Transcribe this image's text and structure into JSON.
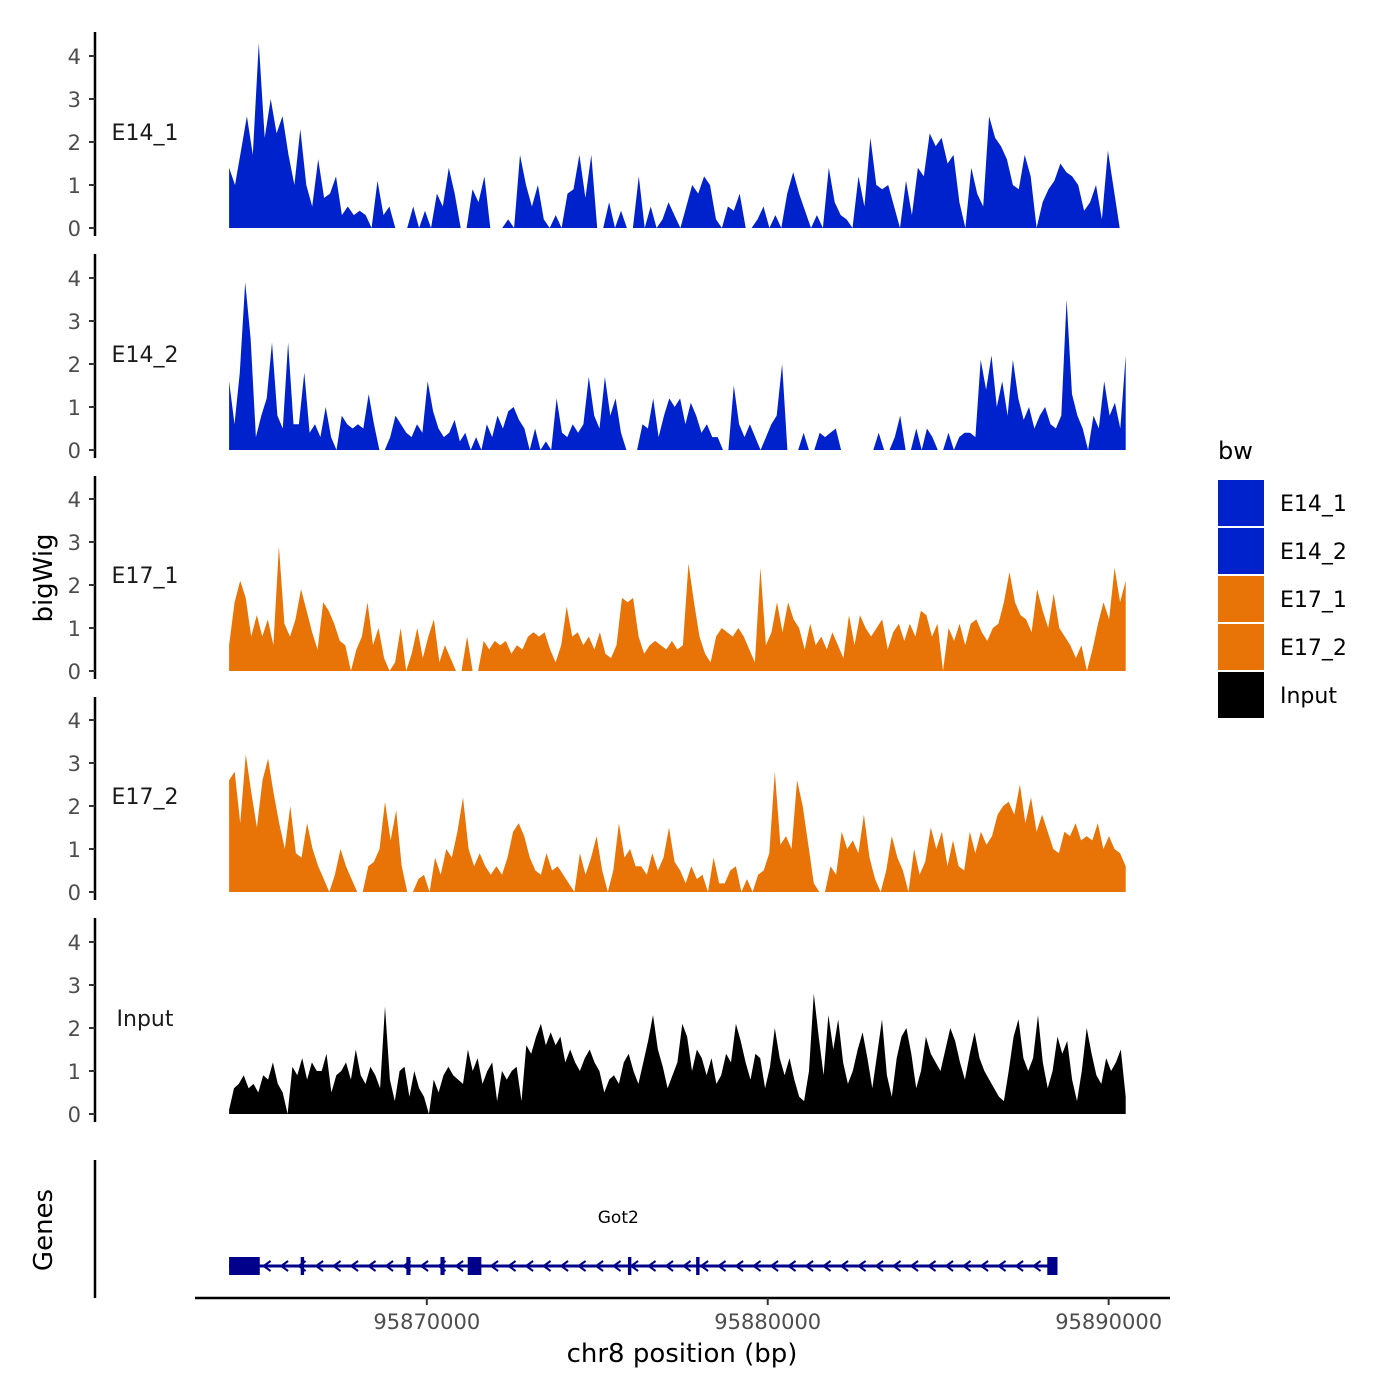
{
  "chart_data": {
    "type": "area",
    "ylabel": "bigWig",
    "xlabel": "chr8 position (bp)",
    "ylim": [
      0,
      4.4
    ],
    "yticks": [
      0,
      1,
      2,
      3,
      4
    ],
    "xlim": [
      95863200,
      95891800
    ],
    "xticks": [
      95870000,
      95880000,
      95890000
    ],
    "xtick_labels": [
      "95870000",
      "95880000",
      "95890000"
    ],
    "x_start": 95864200,
    "x_end": 95890500,
    "legend": {
      "title": "bw",
      "position": "right",
      "entries": [
        {
          "label": "E14_1",
          "color": "#0022CC"
        },
        {
          "label": "E14_2",
          "color": "#0022CC"
        },
        {
          "label": "E17_1",
          "color": "#E87306"
        },
        {
          "label": "E17_2",
          "color": "#E87306"
        },
        {
          "label": "Input",
          "color": "#000000"
        }
      ]
    },
    "series": [
      {
        "name": "E14_1",
        "color": "#0022CC",
        "values": [
          1.4,
          1.0,
          1.8,
          2.6,
          1.7,
          4.3,
          2.1,
          3.0,
          2.2,
          2.6,
          1.7,
          1.0,
          2.3,
          1.0,
          0.5,
          1.6,
          0.7,
          0.8,
          1.2,
          0.3,
          0.5,
          0.3,
          0.4,
          0.3,
          0.0,
          1.1,
          0.3,
          0.5,
          0.0,
          0.0,
          0.0,
          0.5,
          0.0,
          0.4,
          0.0,
          0.8,
          0.5,
          1.4,
          0.8,
          0.0,
          0.0,
          0.9,
          0.6,
          1.2,
          0.0,
          0.0,
          0.0,
          0.2,
          0.0,
          1.7,
          1.0,
          0.5,
          1.0,
          0.2,
          0.0,
          0.3,
          0.0,
          0.8,
          0.9,
          1.7,
          0.7,
          1.7,
          0.0,
          0.0,
          0.6,
          0.0,
          0.4,
          0.0,
          0.0,
          1.2,
          0.0,
          0.5,
          0.0,
          0.2,
          0.6,
          0.3,
          0.0,
          0.5,
          1.0,
          0.8,
          1.2,
          1.0,
          0.2,
          0.0,
          0.5,
          0.4,
          0.8,
          0.0,
          0.0,
          0.2,
          0.5,
          0.0,
          0.3,
          0.0,
          0.8,
          1.3,
          0.8,
          0.4,
          0.0,
          0.3,
          0.0,
          1.4,
          0.6,
          0.3,
          0.2,
          0.0,
          1.2,
          0.5,
          2.1,
          1.0,
          0.9,
          1.0,
          0.5,
          0.0,
          1.1,
          0.3,
          1.4,
          1.2,
          2.2,
          1.9,
          2.1,
          1.5,
          1.7,
          0.6,
          0.0,
          1.4,
          0.8,
          0.5,
          2.6,
          2.1,
          1.9,
          1.6,
          1.0,
          0.9,
          1.7,
          1.2,
          0.0,
          0.6,
          0.9,
          1.1,
          1.5,
          1.3,
          1.2,
          1.0,
          0.4,
          0.6,
          1.0,
          0.2,
          1.8,
          0.9,
          0.0,
          0.0
        ],
        "gaps": [
          [
            0,
            0
          ]
        ]
      },
      {
        "name": "E14_2",
        "color": "#0022CC",
        "values": [
          1.6,
          0.6,
          1.8,
          3.9,
          2.6,
          0.3,
          0.8,
          1.2,
          2.5,
          0.8,
          0.5,
          2.5,
          0.6,
          0.6,
          1.8,
          0.4,
          0.6,
          0.3,
          1.0,
          0.3,
          0.0,
          0.8,
          0.6,
          0.5,
          0.6,
          0.5,
          1.3,
          0.6,
          0.0,
          0.0,
          0.3,
          0.8,
          0.6,
          0.4,
          0.3,
          0.6,
          0.4,
          1.6,
          0.9,
          0.5,
          0.3,
          0.4,
          0.7,
          0.2,
          0.4,
          0.0,
          0.3,
          0.0,
          0.6,
          0.3,
          0.8,
          0.5,
          0.9,
          1.0,
          0.7,
          0.5,
          0.0,
          0.5,
          0.0,
          0.2,
          0.0,
          1.2,
          0.4,
          0.3,
          0.6,
          0.4,
          0.6,
          1.7,
          0.8,
          0.5,
          1.7,
          0.8,
          1.2,
          0.4,
          0.0,
          0.0,
          0.0,
          0.6,
          0.5,
          1.2,
          0.3,
          0.8,
          1.2,
          1.0,
          1.2,
          0.6,
          1.1,
          0.8,
          0.4,
          0.6,
          0.3,
          0.3,
          0.0,
          0.0,
          1.5,
          0.6,
          0.3,
          0.6,
          0.3,
          0.0,
          0.3,
          0.6,
          0.8,
          2.0,
          0.0,
          0.0,
          0.0,
          0.4,
          0.0,
          0.0,
          0.4,
          0.3,
          0.4,
          0.5,
          0.0,
          0.0,
          0.0,
          0.0,
          0.0,
          0.0,
          0.0,
          0.4,
          0.0,
          0.0,
          0.3,
          0.8,
          0.0,
          0.0,
          0.5,
          0.0,
          0.5,
          0.3,
          0.0,
          0.0,
          0.4,
          0.0,
          0.3,
          0.4,
          0.4,
          0.3,
          2.1,
          1.4,
          2.2,
          1.0,
          1.6,
          0.8,
          2.1,
          1.2,
          0.7,
          1.0,
          0.5,
          0.8,
          1.0,
          0.6,
          0.5,
          0.8,
          3.5,
          1.3,
          0.8,
          0.5,
          0.0,
          0.8,
          0.5,
          1.6,
          0.8,
          1.1,
          0.5,
          2.2
        ]
      },
      {
        "name": "E17_1",
        "color": "#E87306",
        "values": [
          0.6,
          1.6,
          2.1,
          1.7,
          0.8,
          1.3,
          0.8,
          1.2,
          0.6,
          2.9,
          1.1,
          0.8,
          1.2,
          1.9,
          1.4,
          0.9,
          0.5,
          1.6,
          1.4,
          1.1,
          0.7,
          0.6,
          0.0,
          0.5,
          0.8,
          1.6,
          0.6,
          1.0,
          0.3,
          0.0,
          0.2,
          1.0,
          0.0,
          0.4,
          1.0,
          0.3,
          0.8,
          1.2,
          0.2,
          0.6,
          0.3,
          0.0,
          0.0,
          0.8,
          0.0,
          0.0,
          0.7,
          0.5,
          0.7,
          0.6,
          0.7,
          0.4,
          0.6,
          0.5,
          0.8,
          0.9,
          0.8,
          0.9,
          0.5,
          0.2,
          0.6,
          1.5,
          0.8,
          0.9,
          0.6,
          0.8,
          0.5,
          0.9,
          0.4,
          0.3,
          0.6,
          1.7,
          1.6,
          1.7,
          0.8,
          0.4,
          0.6,
          0.7,
          0.6,
          0.5,
          0.7,
          0.5,
          0.6,
          2.5,
          1.6,
          0.8,
          0.4,
          0.2,
          0.8,
          1.0,
          0.9,
          0.8,
          1.0,
          0.8,
          0.5,
          0.2,
          2.4,
          0.6,
          0.9,
          1.6,
          0.9,
          1.6,
          1.2,
          1.0,
          0.5,
          1.1,
          0.6,
          0.8,
          0.5,
          0.9,
          0.6,
          0.3,
          1.3,
          0.6,
          1.3,
          1.0,
          0.8,
          1.0,
          1.2,
          0.5,
          0.9,
          1.1,
          0.7,
          1.1,
          0.8,
          1.4,
          1.3,
          0.8,
          1.1,
          0.0,
          1.0,
          0.7,
          1.1,
          0.6,
          1.1,
          1.2,
          0.9,
          0.7,
          1.0,
          1.1,
          1.6,
          2.3,
          1.6,
          1.3,
          1.2,
          0.9,
          1.9,
          1.4,
          1.0,
          1.8,
          1.0,
          0.8,
          0.6,
          0.3,
          0.6,
          0.0,
          0.5,
          1.1,
          1.6,
          1.2,
          2.4,
          1.6,
          2.1
        ]
      },
      {
        "name": "E17_2",
        "color": "#E87306",
        "values": [
          2.6,
          2.8,
          1.6,
          3.2,
          2.3,
          1.5,
          2.6,
          3.1,
          2.3,
          1.6,
          1.0,
          2.0,
          0.9,
          0.8,
          1.6,
          1.0,
          0.6,
          0.3,
          0.0,
          0.4,
          1.0,
          0.6,
          0.3,
          0.0,
          0.0,
          0.6,
          0.7,
          1.0,
          2.1,
          1.2,
          1.9,
          0.6,
          0.0,
          0.0,
          0.3,
          0.4,
          0.0,
          0.8,
          0.4,
          1.0,
          0.8,
          1.4,
          2.2,
          1.0,
          0.6,
          0.9,
          0.6,
          0.4,
          0.6,
          0.4,
          0.8,
          1.4,
          1.6,
          1.3,
          0.8,
          0.5,
          0.4,
          0.9,
          0.5,
          0.6,
          0.4,
          0.2,
          0.0,
          0.9,
          0.4,
          0.8,
          1.3,
          0.5,
          0.0,
          0.5,
          1.6,
          0.8,
          1.0,
          0.6,
          0.6,
          0.4,
          0.9,
          0.5,
          0.8,
          1.5,
          0.7,
          0.5,
          0.2,
          0.6,
          0.3,
          0.4,
          0.0,
          0.8,
          0.2,
          0.2,
          0.5,
          0.6,
          0.0,
          0.3,
          0.0,
          0.4,
          0.5,
          0.9,
          2.8,
          1.1,
          1.3,
          1.0,
          2.6,
          2.0,
          1.1,
          0.2,
          0.0,
          0.0,
          0.6,
          0.4,
          1.4,
          1.0,
          1.2,
          0.9,
          1.8,
          0.8,
          0.3,
          0.0,
          0.5,
          1.3,
          0.8,
          0.5,
          0.0,
          1.0,
          0.4,
          0.7,
          1.5,
          1.0,
          1.4,
          0.6,
          1.2,
          0.6,
          0.5,
          1.4,
          0.9,
          1.4,
          1.1,
          1.3,
          1.8,
          2.0,
          2.1,
          1.8,
          2.5,
          1.6,
          2.2,
          1.4,
          1.8,
          1.4,
          1.0,
          0.9,
          1.4,
          1.3,
          1.6,
          1.2,
          1.3,
          1.2,
          1.6,
          1.0,
          1.3,
          1.0,
          0.9,
          0.6
        ]
      },
      {
        "name": "Input",
        "color": "#000000",
        "values": [
          0.1,
          0.6,
          0.7,
          0.9,
          0.6,
          0.7,
          0.5,
          0.9,
          0.8,
          1.2,
          0.7,
          0.5,
          0.0,
          1.1,
          0.9,
          1.3,
          0.8,
          1.2,
          1.0,
          1.0,
          1.4,
          0.5,
          0.9,
          1.0,
          1.2,
          0.8,
          1.5,
          0.9,
          0.7,
          1.1,
          0.9,
          0.6,
          2.5,
          0.8,
          0.3,
          1.0,
          1.1,
          0.4,
          1.0,
          0.6,
          0.4,
          0.0,
          0.8,
          0.5,
          0.9,
          1.1,
          0.9,
          0.8,
          0.7,
          1.5,
          1.0,
          1.3,
          0.7,
          1.0,
          1.2,
          0.3,
          1.0,
          0.8,
          1.0,
          1.1,
          0.3,
          1.6,
          1.4,
          1.8,
          2.1,
          1.6,
          1.9,
          1.6,
          1.8,
          1.2,
          1.5,
          1.2,
          1.0,
          1.3,
          1.5,
          1.2,
          1.0,
          0.5,
          0.8,
          0.9,
          0.7,
          1.2,
          1.4,
          1.0,
          0.7,
          1.2,
          1.7,
          2.3,
          1.5,
          1.1,
          0.6,
          0.9,
          1.2,
          2.1,
          1.8,
          1.0,
          1.5,
          1.3,
          0.9,
          1.3,
          0.7,
          0.9,
          1.4,
          1.2,
          2.1,
          1.7,
          1.2,
          0.8,
          1.4,
          1.3,
          0.6,
          1.1,
          2.0,
          1.3,
          0.9,
          1.3,
          0.8,
          0.4,
          0.3,
          1.0,
          2.8,
          1.8,
          0.9,
          2.3,
          1.5,
          2.2,
          1.2,
          0.7,
          1.0,
          1.5,
          1.9,
          1.3,
          0.6,
          1.4,
          2.2,
          0.9,
          0.4,
          1.3,
          1.8,
          2.0,
          1.4,
          0.6,
          1.0,
          1.8,
          1.4,
          1.2,
          1.0,
          1.5,
          2.0,
          1.7,
          1.2,
          0.8,
          1.4,
          1.9,
          1.3,
          1.0,
          0.8,
          0.6,
          0.4,
          0.3,
          1.0,
          1.8,
          2.2,
          1.3,
          1.0,
          1.3,
          2.3,
          1.2,
          0.6,
          1.0,
          1.8,
          1.4,
          1.7,
          0.8,
          0.3,
          1.0,
          2.0,
          1.4,
          0.9,
          0.7,
          1.3,
          1.0,
          1.2,
          1.5,
          0.4
        ]
      }
    ],
    "gene_track": {
      "ylabel": "Genes",
      "gene": "Got2",
      "strand": "-",
      "start": 95864200,
      "end": 95888500,
      "exons": [
        [
          95864200,
          95865100
        ],
        [
          95866300,
          95866400
        ],
        [
          95869400,
          95869520
        ],
        [
          95870400,
          95870520
        ],
        [
          95871200,
          95871600
        ],
        [
          95875900,
          95876000
        ],
        [
          95877900,
          95878000
        ],
        [
          95888200,
          95888500
        ]
      ],
      "color": "#00008B"
    }
  }
}
